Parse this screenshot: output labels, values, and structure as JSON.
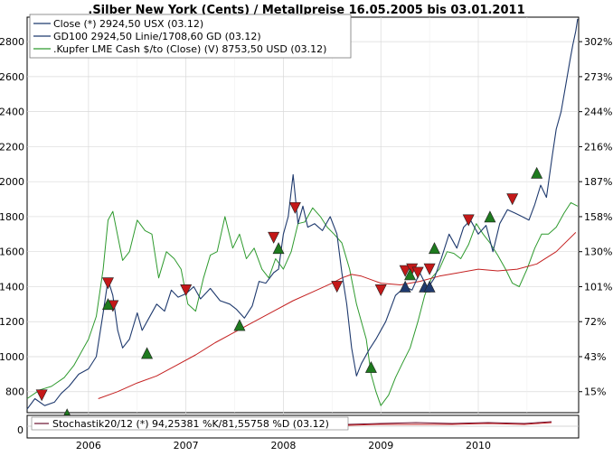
{
  "chart_data": {
    "type": "line",
    "title": ".Silber New York (Cents) / Metallpreise 16.05.2005 bis 03.01.2011",
    "x_ticks": [
      "2006",
      "2007",
      "2008",
      "2009",
      "2010"
    ],
    "y_left_ticks": [
      800,
      1000,
      1200,
      1400,
      1600,
      1800,
      2000,
      2200,
      2400,
      2600,
      2800
    ],
    "y_right_ticks": [
      "15%",
      "43%",
      "72%",
      "101%",
      "130%",
      "158%",
      "187%",
      "216%",
      "244%",
      "273%",
      "302%"
    ],
    "ylim": [
      680,
      2940
    ],
    "xlim": [
      2005.37,
      2011.03
    ],
    "legend": [
      {
        "label": "Close (*) 2924,50 USX (03.12)",
        "color": "#1f3a6e"
      },
      {
        "label": "GD100 2924,50 Linie/1708,60 GD (03.12)",
        "color": "#1f3a6e"
      },
      {
        "label": ".Kupfer LME Cash $/to (Close) (V) 8753,50 USD (03.12)",
        "color": "#2e9a2e"
      }
    ],
    "series": [
      {
        "name": "Close (*) 2924,50 USX (03.12)",
        "color": "#1f3a6e",
        "x": [
          2005.37,
          2005.45,
          2005.55,
          2005.65,
          2005.72,
          2005.8,
          2005.9,
          2006.0,
          2006.08,
          2006.15,
          2006.2,
          2006.25,
          2006.3,
          2006.35,
          2006.42,
          2006.5,
          2006.55,
          2006.62,
          2006.7,
          2006.78,
          2006.85,
          2006.92,
          2007.0,
          2007.08,
          2007.15,
          2007.25,
          2007.35,
          2007.45,
          2007.52,
          2007.6,
          2007.68,
          2007.75,
          2007.82,
          2007.9,
          2007.95,
          2008.0,
          2008.05,
          2008.1,
          2008.15,
          2008.2,
          2008.25,
          2008.32,
          2008.4,
          2008.48,
          2008.55,
          2008.6,
          2008.65,
          2008.7,
          2008.75,
          2008.8,
          2008.88,
          2008.95,
          2009.05,
          2009.15,
          2009.25,
          2009.32,
          2009.4,
          2009.48,
          2009.55,
          2009.62,
          2009.7,
          2009.78,
          2009.85,
          2009.92,
          2010.0,
          2010.08,
          2010.15,
          2010.22,
          2010.3,
          2010.38,
          2010.45,
          2010.52,
          2010.58,
          2010.64,
          2010.7,
          2010.76,
          2010.8,
          2010.85,
          2010.9,
          2010.94,
          2010.97,
          2011.0,
          2011.02
        ],
        "y": [
          700,
          760,
          720,
          740,
          790,
          830,
          900,
          930,
          1000,
          1250,
          1440,
          1350,
          1150,
          1050,
          1100,
          1250,
          1150,
          1220,
          1300,
          1260,
          1380,
          1340,
          1360,
          1400,
          1330,
          1390,
          1320,
          1300,
          1270,
          1220,
          1290,
          1430,
          1420,
          1480,
          1500,
          1700,
          1800,
          2040,
          1760,
          1860,
          1740,
          1760,
          1720,
          1800,
          1700,
          1480,
          1300,
          1050,
          890,
          960,
          1040,
          1100,
          1200,
          1350,
          1400,
          1380,
          1480,
          1390,
          1450,
          1560,
          1700,
          1620,
          1740,
          1780,
          1700,
          1750,
          1600,
          1760,
          1840,
          1820,
          1800,
          1780,
          1870,
          1980,
          1910,
          2150,
          2300,
          2400,
          2560,
          2690,
          2780,
          2860,
          2930
        ]
      },
      {
        "name": "GD100",
        "color": "#c42020",
        "x": [
          2006.1,
          2006.3,
          2006.5,
          2006.7,
          2006.9,
          2007.1,
          2007.3,
          2007.5,
          2007.7,
          2007.9,
          2008.1,
          2008.3,
          2008.5,
          2008.6,
          2008.7,
          2008.8,
          2008.9,
          2009.0,
          2009.2,
          2009.4,
          2009.6,
          2009.8,
          2010.0,
          2010.2,
          2010.4,
          2010.6,
          2010.8,
          2011.0
        ],
        "y": [
          760,
          800,
          850,
          890,
          950,
          1010,
          1080,
          1140,
          1200,
          1260,
          1320,
          1370,
          1420,
          1450,
          1470,
          1460,
          1440,
          1420,
          1410,
          1430,
          1460,
          1480,
          1500,
          1490,
          1500,
          1530,
          1600,
          1710
        ]
      },
      {
        "name": ".Kupfer LME Cash $/to (Close) (V) 8753,50 USD (03.12)",
        "color": "#2e9a2e",
        "x": [
          2005.37,
          2005.5,
          2005.62,
          2005.75,
          2005.85,
          2005.95,
          2006.0,
          2006.08,
          2006.15,
          2006.2,
          2006.25,
          2006.3,
          2006.35,
          2006.42,
          2006.5,
          2006.58,
          2006.65,
          2006.72,
          2006.8,
          2006.88,
          2006.95,
          2007.02,
          2007.1,
          2007.18,
          2007.25,
          2007.32,
          2007.4,
          2007.48,
          2007.55,
          2007.62,
          2007.7,
          2007.78,
          2007.85,
          2007.92,
          2008.0,
          2008.08,
          2008.15,
          2008.22,
          2008.3,
          2008.38,
          2008.45,
          2008.52,
          2008.6,
          2008.68,
          2008.75,
          2008.8,
          2008.85,
          2008.9,
          2008.95,
          2009.0,
          2009.08,
          2009.15,
          2009.22,
          2009.3,
          2009.38,
          2009.45,
          2009.52,
          2009.6,
          2009.68,
          2009.75,
          2009.82,
          2009.9,
          2009.98,
          2010.05,
          2010.12,
          2010.2,
          2010.28,
          2010.35,
          2010.42,
          2010.5,
          2010.58,
          2010.65,
          2010.72,
          2010.8,
          2010.88,
          2010.95,
          2011.02
        ],
        "y": [
          760,
          810,
          830,
          880,
          950,
          1050,
          1100,
          1230,
          1500,
          1780,
          1830,
          1690,
          1550,
          1600,
          1780,
          1720,
          1700,
          1450,
          1600,
          1560,
          1500,
          1300,
          1260,
          1450,
          1580,
          1600,
          1800,
          1620,
          1700,
          1560,
          1620,
          1500,
          1450,
          1560,
          1500,
          1600,
          1760,
          1770,
          1850,
          1800,
          1740,
          1700,
          1650,
          1500,
          1300,
          1200,
          1100,
          900,
          800,
          720,
          780,
          880,
          960,
          1050,
          1200,
          1350,
          1450,
          1500,
          1600,
          1590,
          1560,
          1640,
          1760,
          1700,
          1650,
          1580,
          1500,
          1420,
          1400,
          1500,
          1620,
          1700,
          1700,
          1740,
          1820,
          1880,
          1860
        ]
      }
    ],
    "markers": {
      "sell_triangles_red": [
        {
          "x": 2005.52,
          "y": 780
        },
        {
          "x": 2006.2,
          "y": 1420
        },
        {
          "x": 2006.25,
          "y": 1290
        },
        {
          "x": 2007.0,
          "y": 1380
        },
        {
          "x": 2007.9,
          "y": 1680
        },
        {
          "x": 2008.12,
          "y": 1850
        },
        {
          "x": 2008.55,
          "y": 1400
        },
        {
          "x": 2009.0,
          "y": 1380
        },
        {
          "x": 2009.25,
          "y": 1490
        },
        {
          "x": 2009.32,
          "y": 1500
        },
        {
          "x": 2009.38,
          "y": 1480
        },
        {
          "x": 2009.5,
          "y": 1500
        },
        {
          "x": 2009.9,
          "y": 1780
        },
        {
          "x": 2010.35,
          "y": 1900
        }
      ],
      "buy_triangles_green": [
        {
          "x": 2005.78,
          "y": 670
        },
        {
          "x": 2006.2,
          "y": 1300
        },
        {
          "x": 2006.6,
          "y": 1020
        },
        {
          "x": 2007.55,
          "y": 1180
        },
        {
          "x": 2007.95,
          "y": 1620
        },
        {
          "x": 2008.9,
          "y": 940
        },
        {
          "x": 2009.3,
          "y": 1470
        },
        {
          "x": 2009.55,
          "y": 1620
        },
        {
          "x": 2010.12,
          "y": 1800
        },
        {
          "x": 2010.6,
          "y": 2050
        }
      ],
      "neutral_triangles_navy": [
        {
          "x": 2009.25,
          "y": 1400
        },
        {
          "x": 2009.45,
          "y": 1400
        },
        {
          "x": 2009.5,
          "y": 1400
        }
      ]
    },
    "lower_panel": {
      "label": "Stochastik20/12 (*) 94,25381 %K/81,55758 %D (03.12)",
      "y_tick": "0"
    }
  }
}
